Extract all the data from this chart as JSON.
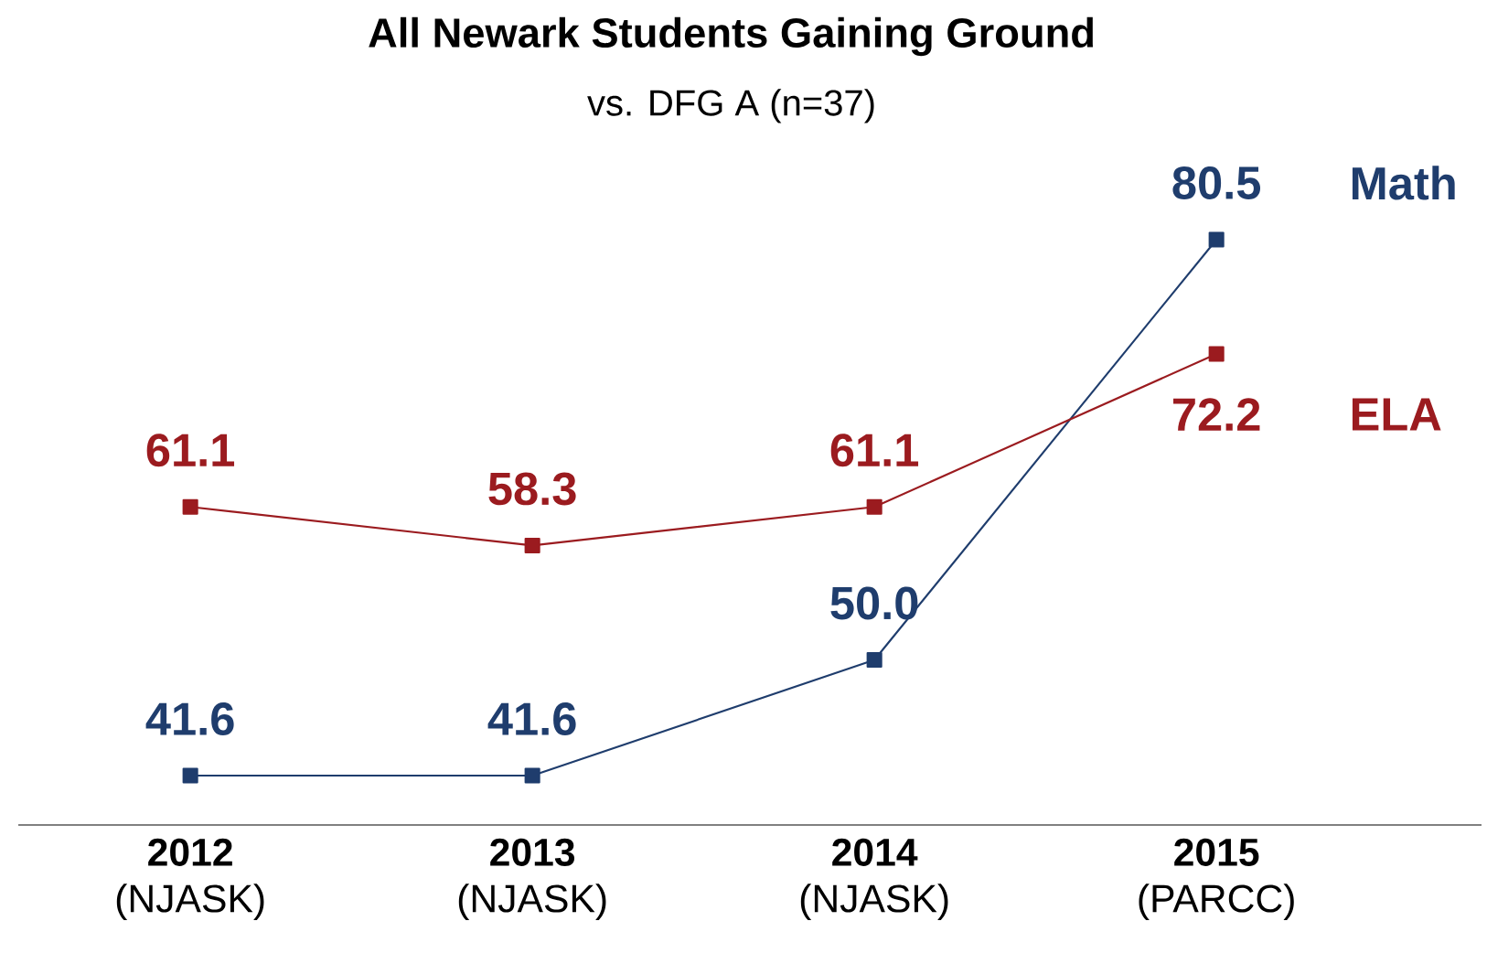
{
  "chart_data": {
    "type": "line",
    "title": "All Newark Students Gaining Ground",
    "subtitle": "vs. DFG A (n=37)",
    "categories": [
      "**2012** (NJASK)",
      "**2013** (NJASK)",
      "**2014** (NJASK)",
      "**2015** (PARCC)"
    ],
    "series": [
      {
        "name": "Math",
        "color": "#1f3d6d",
        "values": [
          41.6,
          41.6,
          50.0,
          80.5
        ],
        "value_labels": [
          "41.6",
          "41.6",
          "50.0",
          "80.5"
        ]
      },
      {
        "name": "ELA",
        "color": "#9b1b1f",
        "values": [
          61.1,
          58.3,
          61.1,
          72.2
        ],
        "value_labels": [
          "61.1",
          "58.3",
          "61.1",
          "72.2"
        ]
      }
    ],
    "grid": false,
    "marker": "square",
    "line_style": "solid"
  }
}
